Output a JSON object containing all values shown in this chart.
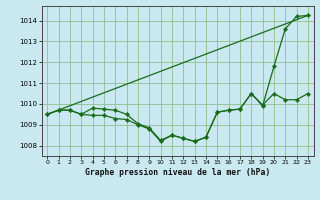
{
  "title": "Graphe pression niveau de la mer (hPa)",
  "background_color": "#cae8f0",
  "plot_bg_color": "#cae8f0",
  "line_color": "#1a6b1a",
  "grid_color": "#8fbf8f",
  "xlim": [
    -0.5,
    23.5
  ],
  "ylim": [
    1007.5,
    1014.7
  ],
  "xticks": [
    0,
    1,
    2,
    3,
    4,
    5,
    6,
    7,
    8,
    9,
    10,
    11,
    12,
    13,
    14,
    15,
    16,
    17,
    18,
    19,
    20,
    21,
    22,
    23
  ],
  "yticks": [
    1008,
    1009,
    1010,
    1011,
    1012,
    1013,
    1014
  ],
  "line1_x": [
    0,
    23
  ],
  "line1_y": [
    1009.5,
    1014.25
  ],
  "line2_x": [
    0,
    1,
    2,
    3,
    4,
    5,
    6,
    7,
    8,
    9,
    10,
    11,
    12,
    13,
    14,
    15,
    16,
    17,
    18,
    19,
    20,
    21,
    22,
    23
  ],
  "line2_y": [
    1009.5,
    1009.7,
    1009.7,
    1009.5,
    1009.45,
    1009.45,
    1009.3,
    1009.25,
    1009.0,
    1008.8,
    1008.2,
    1008.5,
    1008.35,
    1008.2,
    1008.4,
    1009.6,
    1009.7,
    1009.75,
    1010.5,
    1009.9,
    1011.8,
    1013.6,
    1014.2,
    1014.25
  ],
  "line3_x": [
    0,
    1,
    2,
    3,
    4,
    5,
    6,
    7,
    8,
    9,
    10,
    11,
    12,
    13,
    14,
    15,
    16,
    17,
    18,
    19,
    20,
    21,
    22,
    23
  ],
  "line3_y": [
    1009.5,
    1009.7,
    1009.7,
    1009.5,
    1009.8,
    1009.75,
    1009.7,
    1009.5,
    1009.05,
    1008.85,
    1008.25,
    1008.5,
    1008.35,
    1008.2,
    1008.4,
    1009.6,
    1009.7,
    1009.75,
    1010.5,
    1009.95,
    1010.5,
    1010.2,
    1010.2,
    1010.5
  ]
}
